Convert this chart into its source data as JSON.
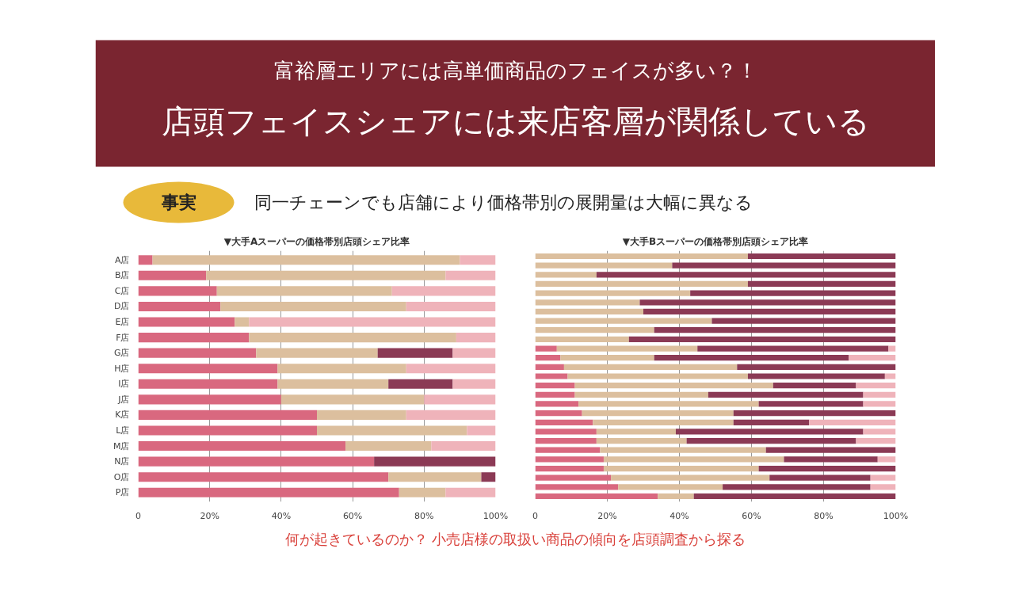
{
  "chart_data": [
    {
      "type": "other",
      "subtitle": "富裕層エリアには高単価商品のフェイスが多い？！",
      "title": "店頭フェイスシェアには来店客層が関係している",
      "annotations": [
        "事実",
        "同一チェーンでも店舗により価格帯別の展開量は大幅に異なる"
      ]
    },
    {
      "type": "bar",
      "orientation": "horizontal",
      "stacked": true,
      "title": "▼大手Aスーパーの価格帯別店頭シェア比率",
      "categories": [
        "A店",
        "B店",
        "C店",
        "D店",
        "E店",
        "F店",
        "G店",
        "H店",
        "I店",
        "J店",
        "K店",
        "L店",
        "M店",
        "N店",
        "O店",
        "P店"
      ],
      "series": [
        {
          "color": "#d9687f",
          "values": [
            4,
            19,
            22,
            23,
            27,
            31,
            33,
            39,
            39,
            40,
            50,
            50,
            58,
            66,
            70,
            73
          ]
        },
        {
          "color": "#dcbf9e",
          "values": [
            86,
            67,
            49,
            52,
            4,
            58,
            34,
            36,
            31,
            40,
            25,
            42,
            24,
            null,
            26,
            13
          ]
        },
        {
          "color": "#8b3a55",
          "values": [
            null,
            null,
            null,
            null,
            null,
            null,
            21,
            null,
            18,
            null,
            null,
            null,
            null,
            34,
            4,
            null
          ]
        },
        {
          "color": "#efb3ba",
          "values": [
            10,
            14,
            29,
            25,
            69,
            11,
            12,
            25,
            12,
            20,
            25,
            8,
            18,
            null,
            null,
            14
          ]
        }
      ],
      "xlim": [
        0,
        100
      ],
      "xticks": [
        0,
        {
          "value": 20,
          "label": "20%"
        },
        {
          "value": 40,
          "label": "40%"
        },
        {
          "value": 60,
          "label": "60%"
        },
        {
          "value": 80,
          "label": "80%"
        },
        {
          "value": 100,
          "label": "100%"
        }
      ],
      "grid": "x"
    },
    {
      "type": "bar",
      "orientation": "horizontal",
      "stacked": true,
      "title": "▼大手Bスーパーの価格帯別店頭シェア比率",
      "categories": [
        null,
        null,
        null,
        null,
        null,
        null,
        null,
        null,
        null,
        null,
        null,
        null,
        null,
        null,
        null,
        null,
        null,
        null,
        null,
        null,
        null,
        null,
        null,
        null,
        null,
        null,
        null
      ],
      "series": [
        {
          "color": "#d9687f",
          "values": [
            null,
            null,
            null,
            null,
            null,
            null,
            null,
            null,
            null,
            null,
            6,
            7,
            8,
            9,
            11,
            11,
            12,
            13,
            16,
            17,
            17,
            18,
            19,
            19,
            21,
            23,
            34
          ]
        },
        {
          "color": "#dcbf9e",
          "values": [
            59,
            38,
            17,
            59,
            43,
            29,
            30,
            49,
            33,
            26,
            39,
            26,
            48,
            50,
            55,
            37,
            50,
            42,
            39,
            22,
            25,
            46,
            50,
            43,
            44,
            29,
            10
          ]
        },
        {
          "color": "#8b3a55",
          "values": [
            41,
            62,
            83,
            41,
            57,
            71,
            70,
            51,
            67,
            74,
            53,
            54,
            44,
            38,
            23,
            43,
            29,
            45,
            21,
            52,
            47,
            36,
            26,
            38,
            28,
            41,
            56
          ]
        },
        {
          "color": "#efb3ba",
          "values": [
            null,
            null,
            null,
            null,
            null,
            null,
            null,
            null,
            null,
            null,
            2,
            13,
            null,
            3,
            11,
            9,
            9,
            null,
            24,
            9,
            11,
            null,
            5,
            null,
            7,
            7,
            null
          ]
        }
      ],
      "xlim": [
        0,
        100
      ],
      "xticks": [
        0,
        {
          "value": 20,
          "label": "20%"
        },
        {
          "value": 40,
          "label": "40%"
        },
        {
          "value": 60,
          "label": "60%"
        },
        {
          "value": 80,
          "label": "80%"
        },
        {
          "value": 100,
          "label": "100%"
        }
      ],
      "grid": "x"
    },
    {
      "type": "other",
      "annotations": [
        "何が起きているのか？ 小売店様の取扱い商品の傾向を店頭調査から探る"
      ]
    }
  ]
}
